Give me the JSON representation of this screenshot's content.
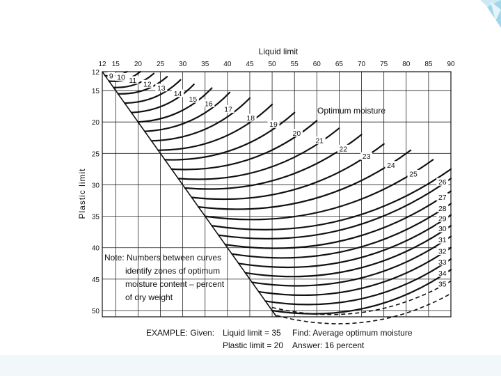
{
  "chart_data": {
    "type": "line",
    "title": "",
    "xlabel": "Liquid limit",
    "ylabel": "Plastic limit",
    "x_ticks": [
      12,
      15,
      20,
      25,
      30,
      35,
      40,
      45,
      50,
      55,
      60,
      65,
      70,
      75,
      80,
      85,
      90
    ],
    "y_ticks": [
      12,
      15,
      20,
      25,
      30,
      35,
      40,
      45,
      50
    ],
    "xlim": [
      12,
      90
    ],
    "ylim": [
      12,
      51
    ],
    "x_axis_position": "top",
    "y_axis_inverted": true,
    "grid": true,
    "boundary_line": {
      "from": [
        12,
        12
      ],
      "to": [
        51,
        51
      ]
    },
    "curve_label": "Optimum moisture",
    "zone_labels": [
      {
        "text": "9",
        "x": 14.0,
        "y": 12.9
      },
      {
        "text": "10",
        "x": 16.2,
        "y": 13.1
      },
      {
        "text": "11",
        "x": 18.8,
        "y": 13.6
      },
      {
        "text": "12",
        "x": 22.1,
        "y": 14.2
      },
      {
        "text": "13",
        "x": 25.2,
        "y": 14.8
      },
      {
        "text": "14",
        "x": 28.9,
        "y": 15.7
      },
      {
        "text": "15",
        "x": 32.3,
        "y": 16.6
      },
      {
        "text": "16",
        "x": 35.8,
        "y": 17.3
      },
      {
        "text": "17",
        "x": 40.2,
        "y": 18.2
      },
      {
        "text": "18",
        "x": 45.2,
        "y": 19.6
      },
      {
        "text": "19",
        "x": 50.3,
        "y": 20.6
      },
      {
        "text": "20",
        "x": 55.5,
        "y": 22.0
      },
      {
        "text": "21",
        "x": 60.6,
        "y": 23.2
      },
      {
        "text": "22",
        "x": 65.9,
        "y": 24.5
      },
      {
        "text": "23",
        "x": 71.1,
        "y": 25.7
      },
      {
        "text": "24",
        "x": 76.6,
        "y": 27.1
      },
      {
        "text": "25",
        "x": 81.6,
        "y": 28.5
      },
      {
        "text": "26",
        "x": 88.1,
        "y": 29.8
      },
      {
        "text": "27",
        "x": 88.1,
        "y": 32.2
      },
      {
        "text": "28",
        "x": 88.1,
        "y": 34.0
      },
      {
        "text": "29",
        "x": 88.1,
        "y": 35.6
      },
      {
        "text": "30",
        "x": 88.1,
        "y": 37.2
      },
      {
        "text": "31",
        "x": 88.1,
        "y": 39.0
      },
      {
        "text": "32",
        "x": 88.1,
        "y": 40.8
      },
      {
        "text": "33",
        "x": 88.1,
        "y": 42.5
      },
      {
        "text": "34",
        "x": 88.1,
        "y": 44.3
      },
      {
        "text": "35",
        "x": 88.1,
        "y": 46.0
      }
    ],
    "curves": [
      {
        "start": [
          12.6,
          12.6
        ],
        "end": [
          17.5,
          12
        ]
      },
      {
        "start": [
          13.5,
          13.5
        ],
        "end": [
          20.5,
          12
        ]
      },
      {
        "start": [
          14.5,
          14.5
        ],
        "end": [
          23.5,
          12.3
        ]
      },
      {
        "start": [
          15.5,
          15.5
        ],
        "end": [
          26.5,
          12.8
        ]
      },
      {
        "start": [
          17.0,
          17.0
        ],
        "end": [
          29.5,
          13.3
        ]
      },
      {
        "start": [
          18.5,
          18.5
        ],
        "end": [
          32.5,
          14.0
        ]
      },
      {
        "start": [
          20.0,
          20.0
        ],
        "end": [
          36.5,
          14.6
        ]
      },
      {
        "start": [
          21.5,
          21.5
        ],
        "end": [
          40.5,
          15.3
        ]
      },
      {
        "start": [
          23.0,
          23.0
        ],
        "end": [
          45.0,
          16.2
        ]
      },
      {
        "start": [
          24.5,
          24.5
        ],
        "end": [
          50.0,
          17.2
        ]
      },
      {
        "start": [
          26.0,
          26.0
        ],
        "end": [
          55.0,
          18.5
        ]
      },
      {
        "start": [
          27.5,
          27.5
        ],
        "end": [
          60.0,
          19.8
        ]
      },
      {
        "start": [
          29.0,
          29.0
        ],
        "end": [
          65.0,
          21.0
        ]
      },
      {
        "start": [
          30.5,
          30.5
        ],
        "end": [
          70.0,
          22.0
        ]
      },
      {
        "start": [
          32.0,
          32.0
        ],
        "end": [
          75.0,
          23.5
        ]
      },
      {
        "start": [
          33.5,
          33.5
        ],
        "end": [
          81.0,
          24.5
        ]
      },
      {
        "start": [
          35.0,
          35.0
        ],
        "end": [
          86.0,
          26.0
        ]
      },
      {
        "start": [
          36.5,
          36.5
        ],
        "end": [
          90.0,
          27.5
        ]
      },
      {
        "start": [
          38.0,
          38.0
        ],
        "end": [
          90.0,
          29.0
        ]
      },
      {
        "start": [
          39.5,
          39.5
        ],
        "end": [
          90.0,
          31.0
        ]
      },
      {
        "start": [
          41.0,
          41.0
        ],
        "end": [
          90.0,
          33.0
        ]
      },
      {
        "start": [
          42.5,
          42.5
        ],
        "end": [
          90.0,
          34.8
        ]
      },
      {
        "start": [
          44.0,
          44.0
        ],
        "end": [
          90.0,
          36.5
        ]
      },
      {
        "start": [
          45.5,
          45.5
        ],
        "end": [
          90.0,
          38.2
        ]
      },
      {
        "start": [
          47.0,
          47.0
        ],
        "end": [
          90.0,
          40.0
        ]
      },
      {
        "start": [
          48.5,
          48.5
        ],
        "end": [
          90.0,
          41.8
        ]
      },
      {
        "start": [
          50.0,
          50.0
        ],
        "end": [
          90.0,
          43.5
        ]
      }
    ],
    "dashed_curves": [
      {
        "start": [
          50.0,
          49.5
        ],
        "end": [
          90.0,
          45.3
        ]
      },
      {
        "start": [
          51.0,
          50.8
        ],
        "end": [
          90.0,
          47.3
        ]
      }
    ],
    "note_lines": [
      "Note: Numbers between curves",
      "identify zones of optimum",
      "moisture content – percent",
      "of dry weight"
    ],
    "example": {
      "given_label": "EXAMPLE: Given:",
      "given_1": "Liquid limit = 35",
      "given_2": "Plastic limit = 20",
      "find": "Find: Average optimum moisture",
      "answer": "Answer: 16 percent"
    }
  },
  "colors": {
    "ink": "#111111",
    "accent_light": "#bfe3f2",
    "accent_mid": "#7cc8e6",
    "footer_band": "#eef4f7"
  }
}
